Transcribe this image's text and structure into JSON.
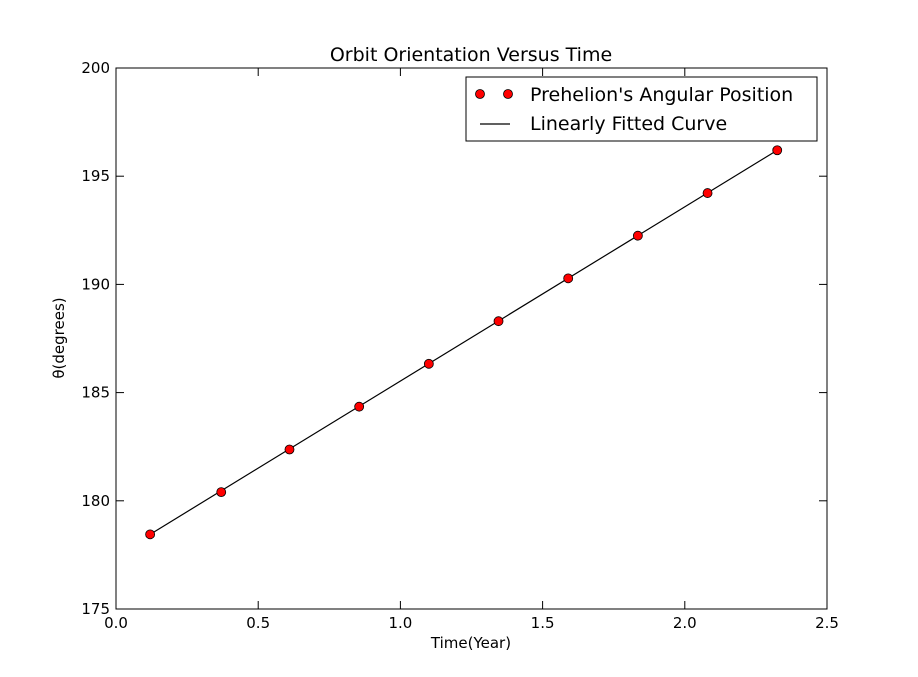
{
  "chart_data": {
    "type": "scatter",
    "title": "Orbit Orientation Versus Time",
    "xlabel": "Time(Year)",
    "ylabel": "θ(degrees)",
    "xlim": [
      0.0,
      2.5
    ],
    "ylim": [
      175,
      200
    ],
    "xticks": [
      "0.0",
      "0.5",
      "1.0",
      "1.5",
      "2.0",
      "2.5"
    ],
    "yticks": [
      "175",
      "180",
      "185",
      "190",
      "195",
      "200"
    ],
    "grid": false,
    "legend_position": "top-right",
    "series": [
      {
        "name": "Prehelion's Angular Position",
        "type": "scatter",
        "color": "#ff0000",
        "x": [
          0.12,
          0.37,
          0.61,
          0.855,
          1.1,
          1.345,
          1.59,
          1.835,
          2.08,
          2.325
        ],
        "y": [
          178.45,
          180.4,
          182.37,
          184.35,
          186.33,
          188.3,
          190.28,
          192.25,
          194.22,
          196.2
        ]
      },
      {
        "name": "Linearly Fitted Curve",
        "type": "line",
        "color": "#000000",
        "x": [
          0.12,
          2.325
        ],
        "y": [
          178.45,
          196.2
        ]
      }
    ]
  }
}
